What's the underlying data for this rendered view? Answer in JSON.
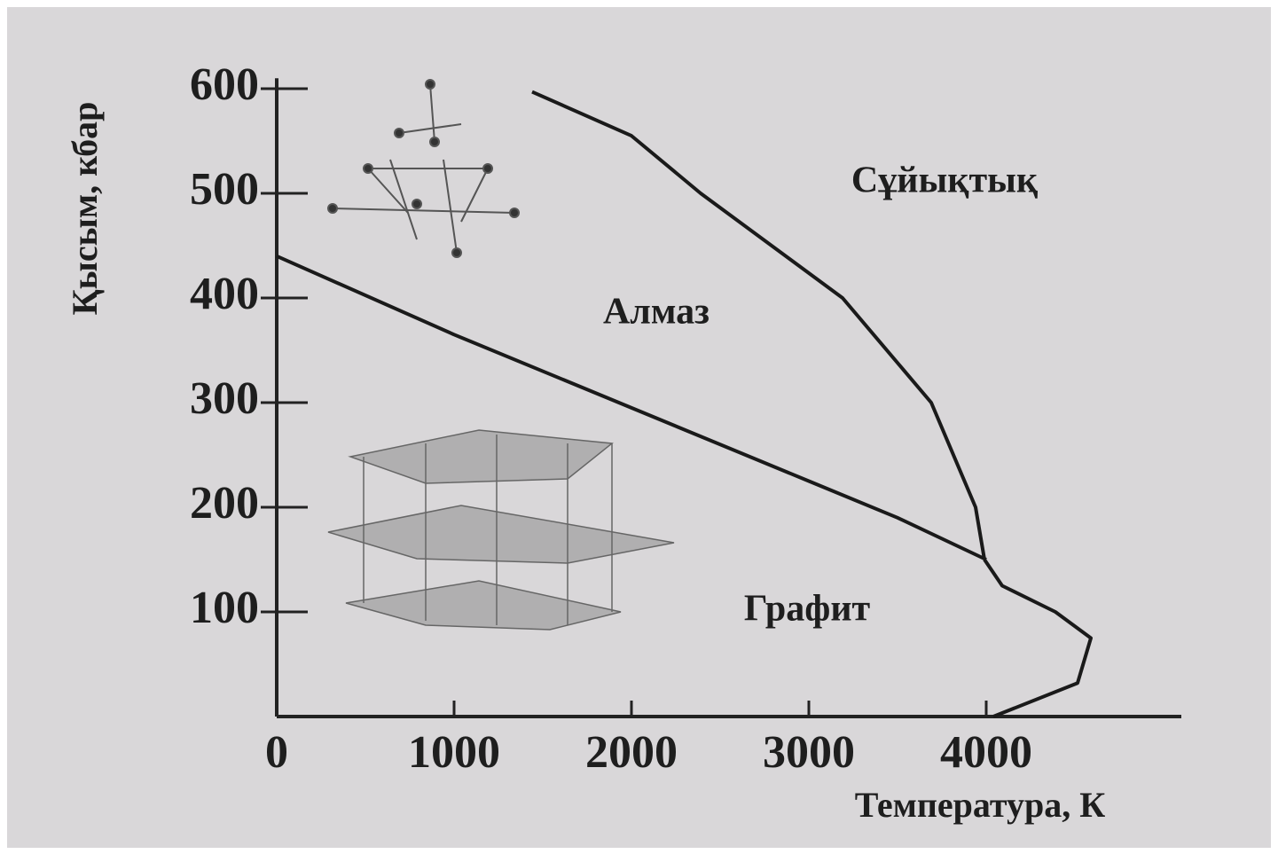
{
  "chart_data": {
    "type": "line",
    "xlabel": "Температура, К",
    "ylabel": "Қысым, кбар",
    "xlim": [
      0,
      5100
    ],
    "ylim": [
      0,
      610
    ],
    "xticks": [
      0,
      1000,
      2000,
      3000,
      4000
    ],
    "yticks": [
      100,
      200,
      300,
      400,
      500,
      600
    ],
    "series": [
      {
        "color": "#1a1a1a",
        "x": [
          0,
          1000,
          2000,
          3000,
          3500,
          4000
        ],
        "values": [
          440,
          365,
          295,
          225,
          190,
          150
        ]
      },
      {
        "color": "#1a1a1a",
        "x": [
          1440,
          2000,
          2390,
          3190,
          3690,
          3940,
          3990
        ],
        "values": [
          597,
          555,
          500,
          400,
          300,
          200,
          150
        ]
      },
      {
        "color": "#1a1a1a",
        "x": [
          3990,
          4090,
          4390,
          4590,
          4515,
          4040
        ],
        "values": [
          150,
          125,
          100,
          75,
          32,
          0
        ]
      }
    ],
    "annotations": [
      "Сұйықтық",
      "Алмаз",
      "Графит"
    ]
  }
}
